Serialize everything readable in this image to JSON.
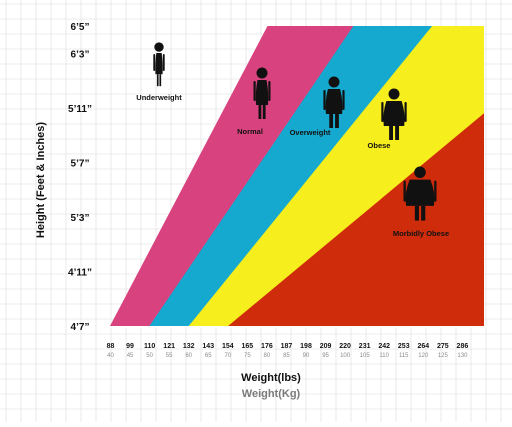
{
  "chart_data": {
    "type": "area",
    "xlabel": "Weight(lbs)",
    "xlabel_secondary": "Weight(Kg)",
    "ylabel": "Height (Feet & Inches)",
    "x_ticks_lbs": [
      "88",
      "99",
      "110",
      "121",
      "132",
      "143",
      "154",
      "165",
      "176",
      "187",
      "198",
      "209",
      "220",
      "231",
      "242",
      "253",
      "264",
      "275",
      "286"
    ],
    "x_ticks_kg": [
      "40",
      "45",
      "50",
      "55",
      "60",
      "65",
      "70",
      "75",
      "80",
      "85",
      "90",
      "95",
      "100",
      "105",
      "110",
      "115",
      "120",
      "125",
      "130"
    ],
    "y_ticks": [
      "4’7”",
      "4’11”",
      "5’3”",
      "5’7”",
      "5’11”",
      "6’3”",
      "6’5”"
    ],
    "xlim_lbs": [
      88,
      297
    ],
    "ylim_inches": [
      55,
      77
    ],
    "categories": [
      "Underweight",
      "Normal",
      "Overweight",
      "Obese",
      "Morbidly Obese"
    ],
    "band_boundaries": [
      {
        "name": "Normal",
        "points": [
          [
            88,
            55
          ],
          [
            176,
            77
          ]
        ]
      },
      {
        "name": "Overweight",
        "points": [
          [
            110,
            55
          ],
          [
            224,
            77
          ]
        ]
      },
      {
        "name": "Obese",
        "points": [
          [
            132,
            55
          ],
          [
            268,
            77
          ]
        ]
      },
      {
        "name": "Morbidly Obese",
        "points": [
          [
            154,
            55
          ],
          [
            297,
            70.6
          ]
        ]
      }
    ],
    "colors": {
      "Normal": "#d8437f",
      "Overweight": "#16a9cf",
      "Obese": "#f7ee1d",
      "Morbidly Obese": "#cf2c0c",
      "grid": "#dcdcdc"
    },
    "grid": true
  }
}
